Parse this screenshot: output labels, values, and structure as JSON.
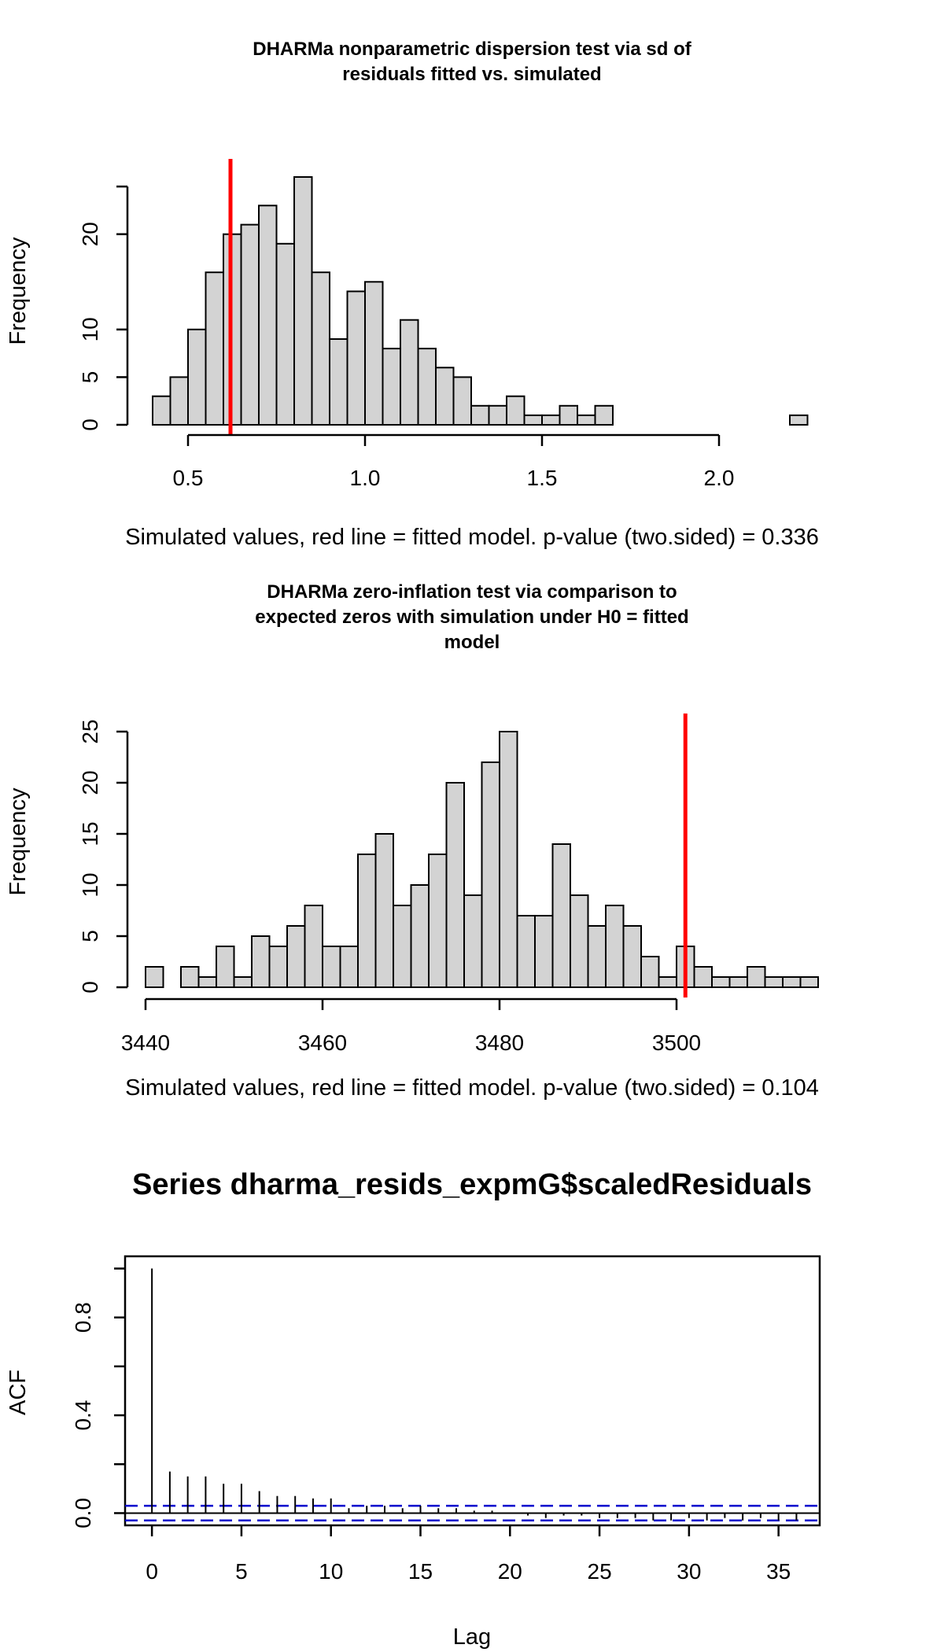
{
  "chart_data": [
    {
      "type": "bar",
      "subtype": "histogram",
      "title": "DHARMa nonparametric dispersion test via sd of residuals fitted vs. simulated",
      "title_lines": [
        "DHARMa nonparametric dispersion test via sd of",
        "residuals fitted vs. simulated"
      ],
      "xlabel": "Simulated values, red line = fitted model. p-value (two.sided) = 0.336",
      "ylabel": "Frequency",
      "xlim": [
        0.38,
        2.28
      ],
      "ylim": [
        0,
        26
      ],
      "x_ticks": [
        0.5,
        1.0,
        1.5,
        2.0
      ],
      "x_tick_labels": [
        "0.5",
        "1.0",
        "1.5",
        "2.0"
      ],
      "y_ticks": [
        0,
        5,
        10,
        20
      ],
      "y_tick_labels": [
        "0",
        "5",
        "10",
        "20"
      ],
      "y_axis_top": 25,
      "bin_start": 0.4,
      "bin_width": 0.05,
      "values": [
        3,
        5,
        10,
        16,
        20,
        21,
        23,
        19,
        26,
        16,
        9,
        14,
        15,
        8,
        11,
        8,
        6,
        5,
        2,
        2,
        3,
        1,
        1,
        2,
        1,
        2,
        0,
        0,
        0,
        0,
        0,
        0,
        0,
        0,
        0,
        0,
        1
      ],
      "fitted_value": 0.62,
      "fitted_color": "#ff0000",
      "bar_color": "#d3d3d3",
      "grid": false
    },
    {
      "type": "bar",
      "subtype": "histogram",
      "title": "DHARMa zero-inflation test via comparison to expected zeros with simulation under H0 = fitted model",
      "title_lines": [
        "DHARMa zero-inflation test via comparison to",
        "expected zeros with simulation under H0 = fitted",
        "model"
      ],
      "xlabel": "Simulated values, red line = fitted model. p-value (two.sided) = 0.104",
      "ylabel": "Frequency",
      "xlim": [
        3440,
        3516
      ],
      "ylim": [
        0,
        25
      ],
      "x_ticks": [
        3440,
        3460,
        3480,
        3500
      ],
      "x_tick_labels": [
        "3440",
        "3460",
        "3480",
        "3500"
      ],
      "y_ticks": [
        0,
        5,
        10,
        15,
        20,
        25
      ],
      "y_tick_labels": [
        "0",
        "5",
        "10",
        "15",
        "20",
        "25"
      ],
      "bin_start": 3440,
      "bin_width": 2,
      "values": [
        2,
        0,
        2,
        1,
        4,
        1,
        5,
        4,
        6,
        8,
        4,
        4,
        13,
        15,
        8,
        10,
        13,
        20,
        9,
        22,
        25,
        7,
        7,
        14,
        9,
        6,
        8,
        6,
        3,
        1,
        4,
        2,
        1,
        1,
        2,
        1,
        1,
        1
      ],
      "fitted_value": 3501,
      "fitted_color": "#ff0000",
      "bar_color": "#d3d3d3",
      "grid": false
    },
    {
      "type": "bar",
      "subtype": "acf",
      "title": "Series  dharma_resids_expmG$scaledResiduals",
      "xlabel": "Lag",
      "ylabel": "ACF",
      "xlim": [
        -1.5,
        37.3
      ],
      "ylim": [
        -0.05,
        1.05
      ],
      "x_ticks": [
        0,
        5,
        10,
        15,
        20,
        25,
        30,
        35
      ],
      "x_tick_labels": [
        "0",
        "5",
        "10",
        "15",
        "20",
        "25",
        "30",
        "35"
      ],
      "y_ticks": [
        0.0,
        0.4,
        0.8
      ],
      "y_tick_labels": [
        "0.0",
        "0.4",
        "0.8"
      ],
      "y_minor_ticks": [
        0.2,
        0.6,
        1.0
      ],
      "lags": [
        0,
        1,
        2,
        3,
        4,
        5,
        6,
        7,
        8,
        9,
        10,
        11,
        12,
        13,
        14,
        15,
        16,
        17,
        18,
        19,
        20,
        21,
        22,
        23,
        24,
        25,
        26,
        27,
        28,
        29,
        30,
        31,
        32,
        33,
        34,
        35,
        36
      ],
      "values": [
        1.0,
        0.17,
        0.15,
        0.15,
        0.12,
        0.12,
        0.09,
        0.07,
        0.07,
        0.06,
        0.06,
        0.02,
        0.03,
        0.03,
        0.02,
        0.03,
        0.02,
        0.02,
        0.01,
        0.01,
        0.0,
        -0.01,
        -0.02,
        -0.01,
        -0.01,
        -0.02,
        -0.02,
        -0.02,
        -0.03,
        -0.03,
        -0.02,
        -0.03,
        -0.02,
        -0.03,
        -0.02,
        -0.03,
        -0.03
      ],
      "ci_bound": 0.03,
      "ci_color": "#0000cd",
      "grid": false
    }
  ]
}
